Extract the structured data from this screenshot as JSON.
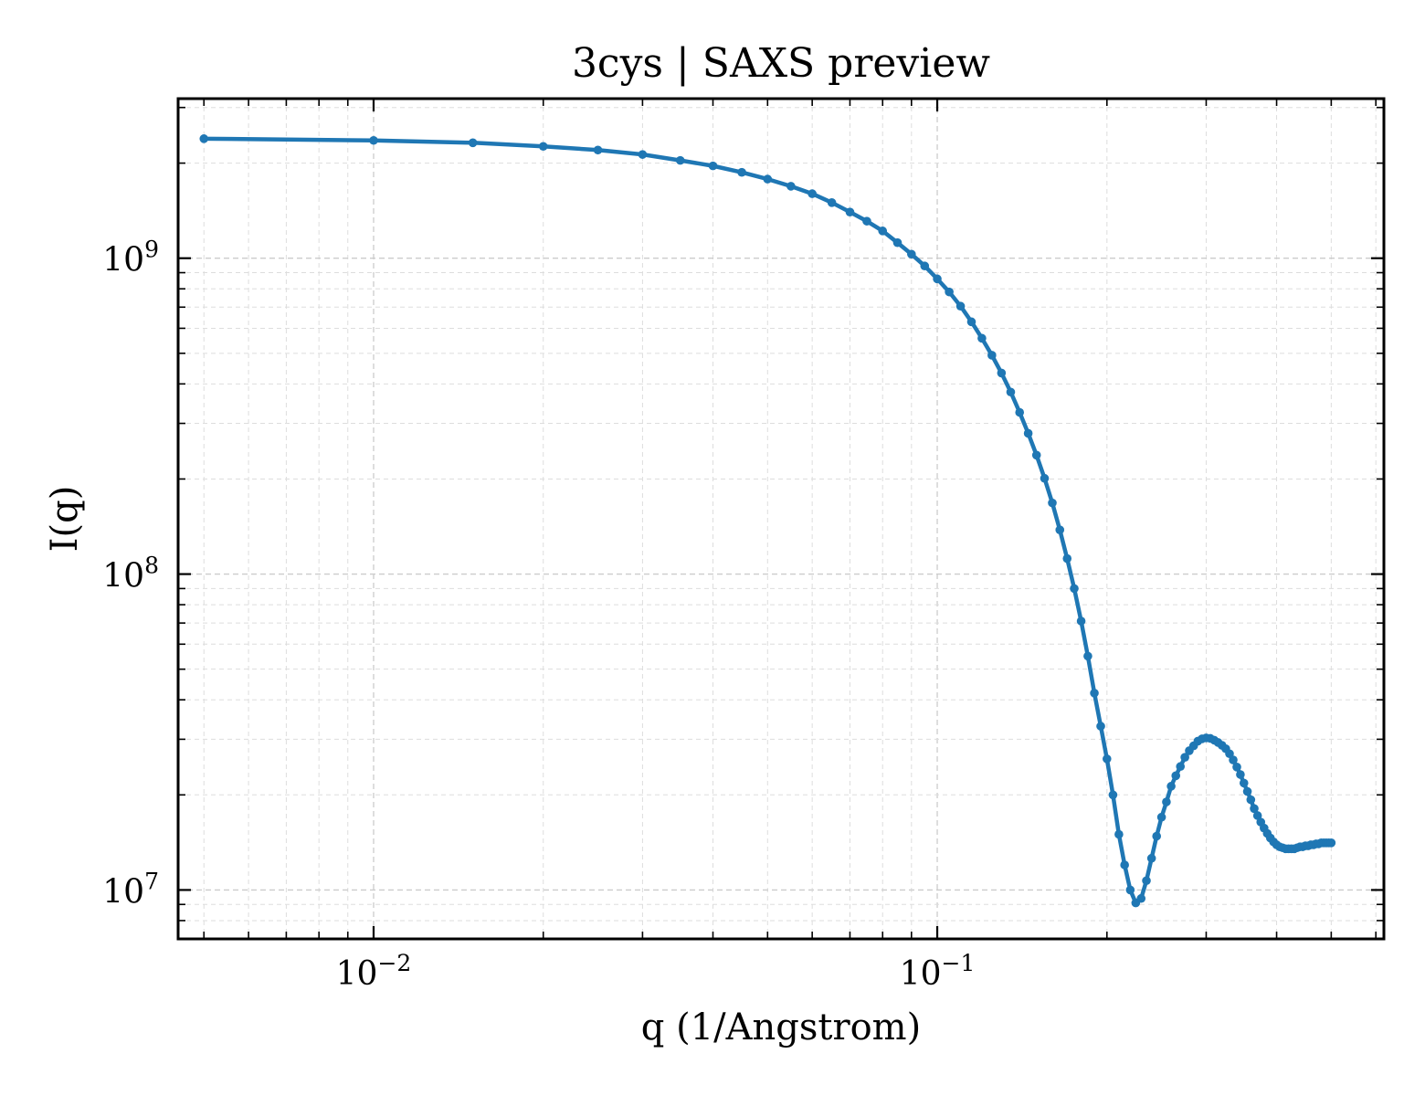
{
  "chart_data": {
    "type": "line",
    "title": "3cys | SAXS preview",
    "xlabel": "q (1/Angstrom)",
    "ylabel": "I(q)",
    "xscale": "log",
    "yscale": "log",
    "xlim": [
      0.0045,
      0.62
    ],
    "ylim": [
      7000000,
      3200000000
    ],
    "grid": true,
    "legend": "none",
    "colors": {
      "line": "#1f77b4"
    },
    "x_tick_labels": [
      {
        "value": 0.01,
        "base": "10",
        "exp": "−2"
      },
      {
        "value": 0.1,
        "base": "10",
        "exp": "−1"
      }
    ],
    "y_tick_labels": [
      {
        "value": 10000000,
        "base": "10",
        "exp": "7"
      },
      {
        "value": 100000000,
        "base": "10",
        "exp": "8"
      },
      {
        "value": 1000000000,
        "base": "10",
        "exp": "9"
      }
    ],
    "series": [
      {
        "x": [
          0.005,
          0.01,
          0.015,
          0.02,
          0.025,
          0.03,
          0.035,
          0.04,
          0.045,
          0.05,
          0.055,
          0.06,
          0.065,
          0.07,
          0.075,
          0.08,
          0.085,
          0.09,
          0.095,
          0.1,
          0.105,
          0.11,
          0.115,
          0.12,
          0.125,
          0.13,
          0.135,
          0.14,
          0.145,
          0.15,
          0.155,
          0.16,
          0.165,
          0.17,
          0.175,
          0.18,
          0.185,
          0.19,
          0.195,
          0.2,
          0.205,
          0.21,
          0.215,
          0.22,
          0.225,
          0.23,
          0.235,
          0.24,
          0.245,
          0.25,
          0.255,
          0.26,
          0.265,
          0.27,
          0.275,
          0.28,
          0.285,
          0.29,
          0.295,
          0.3,
          0.305,
          0.31,
          0.315,
          0.32,
          0.325,
          0.33,
          0.335,
          0.34,
          0.345,
          0.35,
          0.355,
          0.36,
          0.365,
          0.37,
          0.375,
          0.38,
          0.385,
          0.39,
          0.395,
          0.4,
          0.405,
          0.41,
          0.415,
          0.42,
          0.425,
          0.43,
          0.435,
          0.44,
          0.445,
          0.45,
          0.455,
          0.46,
          0.465,
          0.47,
          0.475,
          0.48,
          0.485,
          0.49,
          0.495,
          0.5
        ],
        "y": [
          2390000000,
          2360000000,
          2320000000,
          2260000000,
          2200000000,
          2130000000,
          2040000000,
          1960000000,
          1870000000,
          1780000000,
          1690000000,
          1600000000,
          1500000000,
          1400000000,
          1310000000,
          1220000000,
          1120000000,
          1030000000,
          945000000,
          860000000,
          782000000,
          705000000,
          629000000,
          558000000,
          493000000,
          433000000,
          377000000,
          325000000,
          279000000,
          238000000,
          201000000,
          168000000,
          138000000,
          112000000,
          90000000,
          71000000,
          55000000,
          42000000,
          33000000,
          26000000,
          20000000,
          15000000,
          12000000,
          10000000,
          9100000,
          9400000,
          10700000,
          12600000,
          14800000,
          17000000,
          19000000,
          21300000,
          23000000,
          24600000,
          26300000,
          27600000,
          28600000,
          29600000,
          30100000,
          30300000,
          30200000,
          29800000,
          29300000,
          28700000,
          28000000,
          27000000,
          25800000,
          24500000,
          23200000,
          21800000,
          20500000,
          19300000,
          18100000,
          17200000,
          16400000,
          15700000,
          15100000,
          14600000,
          14200000,
          13900000,
          13700000,
          13600000,
          13500000,
          13500000,
          13500000,
          13500000,
          13600000,
          13700000,
          13700000,
          13800000,
          13800000,
          13900000,
          13900000,
          14000000,
          14000000,
          14100000,
          14100000,
          14100000,
          14100000,
          14100000
        ]
      }
    ]
  }
}
